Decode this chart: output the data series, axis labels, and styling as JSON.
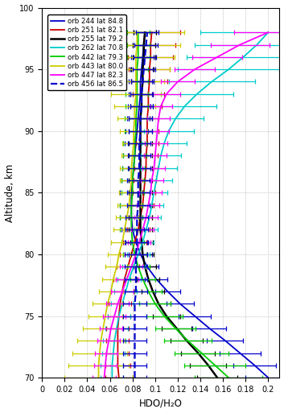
{
  "xlabel": "HDO/H₂O",
  "ylabel": "Altitude, km",
  "xlim": [
    0,
    0.21
  ],
  "ylim": [
    70,
    100
  ],
  "xticks": [
    0,
    0.02,
    0.04,
    0.06,
    0.08,
    0.1,
    0.12,
    0.14,
    0.16,
    0.18,
    0.2
  ],
  "xticklabels": [
    "0",
    "0.02",
    "0.04",
    "0.06",
    "0.08",
    "0.1",
    "0.12",
    "0.14",
    "0.16",
    "0.18",
    "0.2"
  ],
  "yticks": [
    70,
    75,
    80,
    85,
    90,
    95,
    100
  ],
  "series": [
    {
      "label": "orb 244 lat 84.8",
      "color": "#0000cc",
      "linestyle": "-",
      "lw": 1.3,
      "alts": [
        70,
        71,
        72,
        73,
        74,
        75,
        76,
        77,
        78,
        79,
        80,
        81,
        82,
        83,
        84,
        85,
        86,
        87,
        88,
        89,
        90,
        91,
        92,
        93,
        94,
        95,
        96,
        97,
        98
      ],
      "vals": [
        0.2,
        0.188,
        0.175,
        0.162,
        0.148,
        0.135,
        0.122,
        0.111,
        0.101,
        0.093,
        0.087,
        0.083,
        0.08,
        0.079,
        0.079,
        0.079,
        0.08,
        0.081,
        0.082,
        0.083,
        0.084,
        0.085,
        0.086,
        0.087,
        0.087,
        0.088,
        0.089,
        0.09,
        0.091
      ],
      "err_lo": [
        0.02,
        0.019,
        0.018,
        0.016,
        0.015,
        0.014,
        0.012,
        0.011,
        0.01,
        0.01,
        0.01,
        0.01,
        0.01,
        0.01,
        0.01,
        0.01,
        0.01,
        0.01,
        0.01,
        0.01,
        0.01,
        0.01,
        0.01,
        0.01,
        0.01,
        0.01,
        0.01,
        0.01,
        0.01
      ],
      "err_hi": [
        0.02,
        0.019,
        0.018,
        0.016,
        0.015,
        0.014,
        0.012,
        0.011,
        0.01,
        0.01,
        0.01,
        0.01,
        0.01,
        0.01,
        0.01,
        0.01,
        0.01,
        0.01,
        0.01,
        0.01,
        0.01,
        0.01,
        0.01,
        0.01,
        0.01,
        0.01,
        0.01,
        0.01,
        0.01
      ]
    },
    {
      "label": "orb 251 lat 82.1",
      "color": "#cc0000",
      "linestyle": "-",
      "lw": 1.3,
      "alts": [
        70,
        71,
        72,
        73,
        74,
        75,
        76,
        77,
        78,
        79,
        80,
        81,
        82,
        83,
        84,
        85,
        86,
        87,
        88,
        89,
        90,
        91,
        92,
        93,
        94,
        95,
        96,
        97,
        98
      ],
      "vals": [
        0.068,
        0.067,
        0.067,
        0.067,
        0.067,
        0.068,
        0.069,
        0.071,
        0.073,
        0.076,
        0.079,
        0.082,
        0.085,
        0.087,
        0.089,
        0.09,
        0.091,
        0.092,
        0.092,
        0.093,
        0.093,
        0.093,
        0.094,
        0.094,
        0.095,
        0.095,
        0.096,
        0.096,
        0.097
      ],
      "err_lo": [
        0.012,
        0.011,
        0.01,
        0.01,
        0.01,
        0.01,
        0.01,
        0.01,
        0.01,
        0.01,
        0.01,
        0.01,
        0.01,
        0.01,
        0.01,
        0.01,
        0.01,
        0.01,
        0.01,
        0.01,
        0.01,
        0.01,
        0.012,
        0.014,
        0.016,
        0.018,
        0.02,
        0.022,
        0.025
      ],
      "err_hi": [
        0.012,
        0.011,
        0.01,
        0.01,
        0.01,
        0.01,
        0.01,
        0.01,
        0.01,
        0.01,
        0.01,
        0.01,
        0.01,
        0.01,
        0.01,
        0.01,
        0.01,
        0.01,
        0.01,
        0.01,
        0.01,
        0.01,
        0.012,
        0.014,
        0.016,
        0.018,
        0.02,
        0.022,
        0.025
      ]
    },
    {
      "label": "orb 255 lat 79.2",
      "color": "#000000",
      "linestyle": "-",
      "lw": 1.8,
      "alts": [
        70,
        71,
        72,
        73,
        74,
        75,
        76,
        77,
        78,
        79,
        80,
        81,
        82,
        83,
        84,
        85,
        86,
        87,
        88,
        89,
        90,
        91,
        92,
        93,
        94,
        95,
        96,
        97,
        98
      ],
      "vals": [
        0.155,
        0.147,
        0.138,
        0.128,
        0.119,
        0.11,
        0.103,
        0.098,
        0.094,
        0.091,
        0.089,
        0.088,
        0.087,
        0.087,
        0.087,
        0.087,
        0.087,
        0.087,
        0.087,
        0.087,
        0.087,
        0.087,
        0.088,
        0.088,
        0.089,
        0.089,
        0.09,
        0.09,
        0.091
      ],
      "err_lo": [
        0.018,
        0.016,
        0.015,
        0.014,
        0.013,
        0.012,
        0.011,
        0.01,
        0.01,
        0.01,
        0.01,
        0.01,
        0.01,
        0.01,
        0.01,
        0.01,
        0.01,
        0.01,
        0.01,
        0.01,
        0.01,
        0.01,
        0.01,
        0.01,
        0.01,
        0.01,
        0.01,
        0.01,
        0.01
      ],
      "err_hi": [
        0.018,
        0.016,
        0.015,
        0.014,
        0.013,
        0.012,
        0.011,
        0.01,
        0.01,
        0.01,
        0.01,
        0.01,
        0.01,
        0.01,
        0.01,
        0.01,
        0.01,
        0.01,
        0.01,
        0.01,
        0.01,
        0.01,
        0.01,
        0.01,
        0.01,
        0.01,
        0.01,
        0.01,
        0.01
      ]
    },
    {
      "label": "orb 262 lat 70.8",
      "color": "#00cccc",
      "linestyle": "-",
      "lw": 1.3,
      "alts": [
        70,
        71,
        72,
        73,
        74,
        75,
        76,
        77,
        78,
        79,
        80,
        81,
        82,
        83,
        84,
        85,
        86,
        87,
        88,
        89,
        90,
        91,
        92,
        93,
        94,
        95,
        96,
        97,
        98
      ],
      "vals": [
        0.062,
        0.062,
        0.063,
        0.064,
        0.066,
        0.068,
        0.071,
        0.074,
        0.077,
        0.081,
        0.085,
        0.089,
        0.092,
        0.095,
        0.097,
        0.099,
        0.101,
        0.103,
        0.105,
        0.108,
        0.112,
        0.118,
        0.126,
        0.137,
        0.15,
        0.165,
        0.178,
        0.19,
        0.2
      ],
      "err_lo": [
        0.01,
        0.01,
        0.01,
        0.01,
        0.01,
        0.01,
        0.01,
        0.01,
        0.01,
        0.01,
        0.01,
        0.01,
        0.01,
        0.01,
        0.01,
        0.012,
        0.014,
        0.016,
        0.018,
        0.02,
        0.022,
        0.025,
        0.028,
        0.032,
        0.038,
        0.045,
        0.05,
        0.055,
        0.06
      ],
      "err_hi": [
        0.01,
        0.01,
        0.01,
        0.01,
        0.01,
        0.01,
        0.01,
        0.01,
        0.01,
        0.01,
        0.01,
        0.01,
        0.01,
        0.01,
        0.01,
        0.012,
        0.014,
        0.016,
        0.018,
        0.02,
        0.022,
        0.025,
        0.028,
        0.032,
        0.038,
        0.045,
        0.05,
        0.055,
        0.06
      ]
    },
    {
      "label": "orb 442 lat 79.3",
      "color": "#00cc00",
      "linestyle": "-",
      "lw": 1.3,
      "alts": [
        70,
        71,
        72,
        73,
        74,
        75,
        76,
        77,
        78,
        79,
        80,
        81,
        82,
        83,
        84,
        85,
        86,
        87,
        88,
        89,
        90,
        91,
        92,
        93,
        94,
        95,
        96,
        97,
        98
      ],
      "vals": [
        0.165,
        0.153,
        0.141,
        0.129,
        0.118,
        0.108,
        0.1,
        0.094,
        0.089,
        0.085,
        0.082,
        0.08,
        0.079,
        0.079,
        0.079,
        0.08,
        0.08,
        0.081,
        0.082,
        0.082,
        0.083,
        0.083,
        0.084,
        0.084,
        0.084,
        0.084,
        0.085,
        0.085,
        0.085
      ],
      "err_lo": [
        0.03,
        0.027,
        0.024,
        0.021,
        0.018,
        0.016,
        0.014,
        0.012,
        0.011,
        0.01,
        0.01,
        0.01,
        0.01,
        0.01,
        0.01,
        0.01,
        0.01,
        0.01,
        0.01,
        0.01,
        0.01,
        0.01,
        0.01,
        0.01,
        0.01,
        0.01,
        0.01,
        0.01,
        0.01
      ],
      "err_hi": [
        0.03,
        0.027,
        0.024,
        0.021,
        0.018,
        0.016,
        0.014,
        0.012,
        0.011,
        0.01,
        0.01,
        0.01,
        0.01,
        0.01,
        0.01,
        0.01,
        0.01,
        0.01,
        0.01,
        0.01,
        0.01,
        0.01,
        0.01,
        0.01,
        0.01,
        0.01,
        0.01,
        0.01,
        0.01
      ]
    },
    {
      "label": "orb 443 lat 80.0",
      "color": "#cccc00",
      "linestyle": "-",
      "lw": 1.3,
      "alts": [
        70,
        71,
        72,
        73,
        74,
        75,
        76,
        77,
        78,
        79,
        80,
        81,
        82,
        83,
        84,
        85,
        86,
        87,
        88,
        89,
        90,
        91,
        92,
        93,
        94,
        95,
        96,
        97,
        98
      ],
      "vals": [
        0.05,
        0.05,
        0.051,
        0.052,
        0.054,
        0.056,
        0.058,
        0.061,
        0.063,
        0.066,
        0.068,
        0.071,
        0.073,
        0.075,
        0.077,
        0.078,
        0.079,
        0.079,
        0.08,
        0.081,
        0.081,
        0.082,
        0.082,
        0.083,
        0.083,
        0.083,
        0.083,
        0.084,
        0.084
      ],
      "err_lo": [
        0.03,
        0.027,
        0.024,
        0.021,
        0.018,
        0.015,
        0.013,
        0.011,
        0.01,
        0.01,
        0.01,
        0.01,
        0.01,
        0.01,
        0.01,
        0.01,
        0.01,
        0.01,
        0.01,
        0.01,
        0.012,
        0.015,
        0.018,
        0.022,
        0.025,
        0.03,
        0.034,
        0.038,
        0.042
      ],
      "err_hi": [
        0.03,
        0.027,
        0.024,
        0.021,
        0.018,
        0.015,
        0.013,
        0.011,
        0.01,
        0.01,
        0.01,
        0.01,
        0.01,
        0.01,
        0.01,
        0.01,
        0.01,
        0.01,
        0.01,
        0.01,
        0.012,
        0.015,
        0.018,
        0.022,
        0.025,
        0.03,
        0.034,
        0.038,
        0.042
      ]
    },
    {
      "label": "orb 447 lat 82.3",
      "color": "#ff00ff",
      "linestyle": "-",
      "lw": 1.3,
      "alts": [
        70,
        71,
        72,
        73,
        74,
        75,
        76,
        77,
        78,
        79,
        80,
        81,
        82,
        83,
        84,
        85,
        86,
        87,
        88,
        89,
        90,
        91,
        92,
        93,
        94,
        95,
        96,
        97,
        98
      ],
      "vals": [
        0.055,
        0.056,
        0.057,
        0.059,
        0.061,
        0.064,
        0.067,
        0.071,
        0.075,
        0.079,
        0.083,
        0.086,
        0.089,
        0.092,
        0.094,
        0.096,
        0.097,
        0.099,
        0.1,
        0.101,
        0.102,
        0.103,
        0.105,
        0.11,
        0.12,
        0.135,
        0.155,
        0.175,
        0.2
      ],
      "err_lo": [
        0.01,
        0.01,
        0.01,
        0.01,
        0.01,
        0.01,
        0.01,
        0.01,
        0.01,
        0.01,
        0.01,
        0.01,
        0.01,
        0.01,
        0.01,
        0.01,
        0.01,
        0.01,
        0.01,
        0.01,
        0.01,
        0.01,
        0.01,
        0.012,
        0.015,
        0.018,
        0.022,
        0.026,
        0.03
      ],
      "err_hi": [
        0.01,
        0.01,
        0.01,
        0.01,
        0.01,
        0.01,
        0.01,
        0.01,
        0.01,
        0.01,
        0.01,
        0.01,
        0.01,
        0.01,
        0.01,
        0.01,
        0.01,
        0.01,
        0.01,
        0.01,
        0.01,
        0.01,
        0.01,
        0.012,
        0.015,
        0.018,
        0.022,
        0.026,
        0.03
      ]
    },
    {
      "label": "orb 456 lat 86.5",
      "color": "#0000cc",
      "linestyle": "--",
      "lw": 1.6,
      "alts": [
        70,
        71,
        72,
        73,
        74,
        75,
        76,
        77,
        78,
        79,
        80,
        81,
        82,
        83,
        84,
        85,
        86,
        87,
        88,
        89,
        90,
        91,
        92,
        93,
        94,
        95,
        96,
        97,
        98
      ],
      "vals": [
        0.082,
        0.082,
        0.082,
        0.082,
        0.082,
        0.082,
        0.082,
        0.083,
        0.083,
        0.083,
        0.083,
        0.084,
        0.084,
        0.084,
        0.085,
        0.085,
        0.085,
        0.086,
        0.086,
        0.086,
        0.087,
        0.087,
        0.088,
        0.088,
        0.089,
        0.09,
        0.091,
        0.092,
        0.093
      ],
      "err_lo": [
        0.01,
        0.01,
        0.01,
        0.01,
        0.01,
        0.01,
        0.01,
        0.01,
        0.01,
        0.01,
        0.01,
        0.01,
        0.01,
        0.01,
        0.01,
        0.01,
        0.01,
        0.01,
        0.01,
        0.01,
        0.01,
        0.01,
        0.01,
        0.01,
        0.01,
        0.01,
        0.01,
        0.01,
        0.01
      ],
      "err_hi": [
        0.01,
        0.01,
        0.01,
        0.01,
        0.01,
        0.01,
        0.01,
        0.01,
        0.01,
        0.01,
        0.01,
        0.01,
        0.01,
        0.01,
        0.01,
        0.01,
        0.01,
        0.01,
        0.01,
        0.01,
        0.01,
        0.01,
        0.01,
        0.01,
        0.01,
        0.01,
        0.01,
        0.01,
        0.01
      ]
    }
  ]
}
